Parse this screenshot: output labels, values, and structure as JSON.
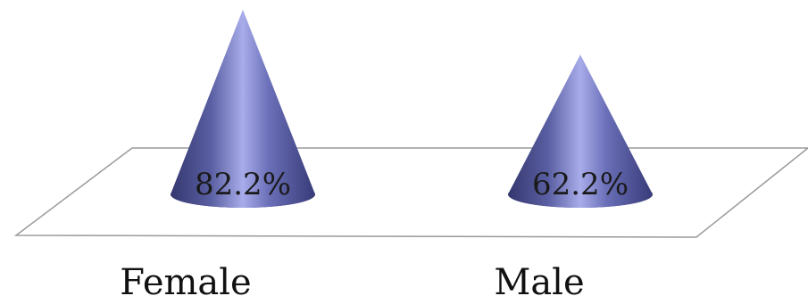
{
  "chart_data": {
    "type": "bar",
    "shape": "cone",
    "categories": [
      "Female",
      "Male"
    ],
    "values": [
      82.2,
      62.2
    ],
    "data_labels": [
      "82.2%",
      "62.2%"
    ],
    "unit": "%",
    "title": "",
    "xlabel": "",
    "ylabel": "",
    "ylim": [
      0,
      100
    ],
    "grid": false,
    "legend": "none",
    "colors": {
      "cone_dark": "#3a3d78",
      "cone_mid": "#6b70b8",
      "cone_light": "#a9adeb",
      "floor_stroke": "#9a9a9a"
    }
  }
}
